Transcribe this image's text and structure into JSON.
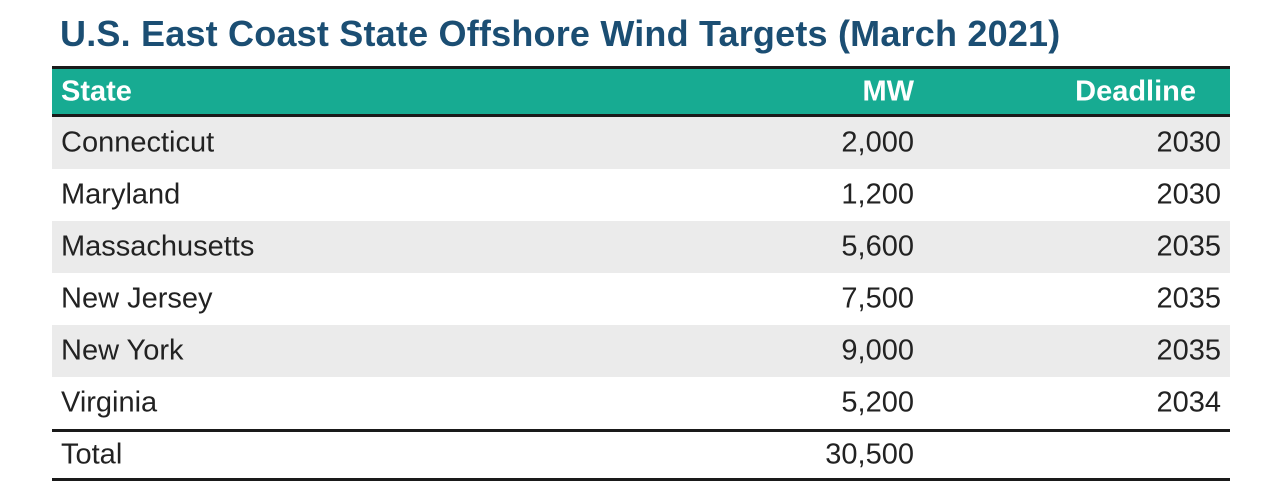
{
  "chart_data": {
    "type": "table",
    "title": "U.S. East Coast State Offshore Wind Targets (March 2021)",
    "columns": [
      "State",
      "MW",
      "Deadline"
    ],
    "rows": [
      {
        "state": "Connecticut",
        "mw": "2,000",
        "deadline": "2030"
      },
      {
        "state": "Maryland",
        "mw": "1,200",
        "deadline": "2030"
      },
      {
        "state": "Massachusetts",
        "mw": "5,600",
        "deadline": "2035"
      },
      {
        "state": "New Jersey",
        "mw": "7,500",
        "deadline": "2035"
      },
      {
        "state": "New York",
        "mw": "9,000",
        "deadline": "2035"
      },
      {
        "state": "Virginia",
        "mw": "5,200",
        "deadline": "2034"
      }
    ],
    "total": {
      "label": "Total",
      "mw": "30,500",
      "deadline": ""
    },
    "colors": {
      "title": "#1b4e73",
      "header_bg": "#17ab92",
      "header_text": "#ffffff",
      "stripe": "#ebebeb",
      "rule": "#1a1a1a"
    }
  }
}
